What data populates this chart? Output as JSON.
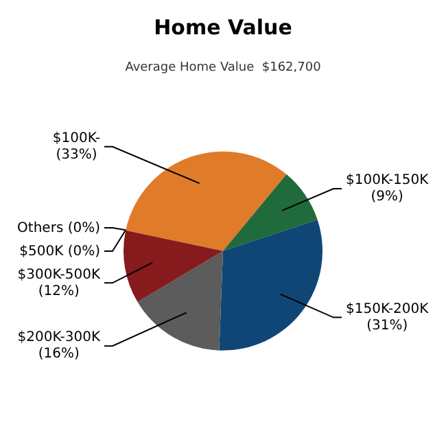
{
  "chart_data": {
    "type": "pie",
    "title": "Home Value",
    "subtitle": "Average Home Value  $162,700",
    "categories": [
      "$100K-",
      "$100K-150K",
      "$150K-200K",
      "$200K-300K",
      "$300K-500K",
      "$500K",
      "Others"
    ],
    "values": [
      33,
      9,
      31,
      16,
      12,
      0,
      0
    ],
    "value_labels": [
      "(33%)",
      "(9%)",
      "(31%)",
      "(16%)",
      "(12%)",
      "(0%)",
      "(0%)"
    ],
    "colors": [
      "#e07b2a",
      "#1f6b3b",
      "#0f4676",
      "#5c5c5c",
      "#861a1c",
      "#5a1010",
      "#3a3a3a"
    ]
  }
}
